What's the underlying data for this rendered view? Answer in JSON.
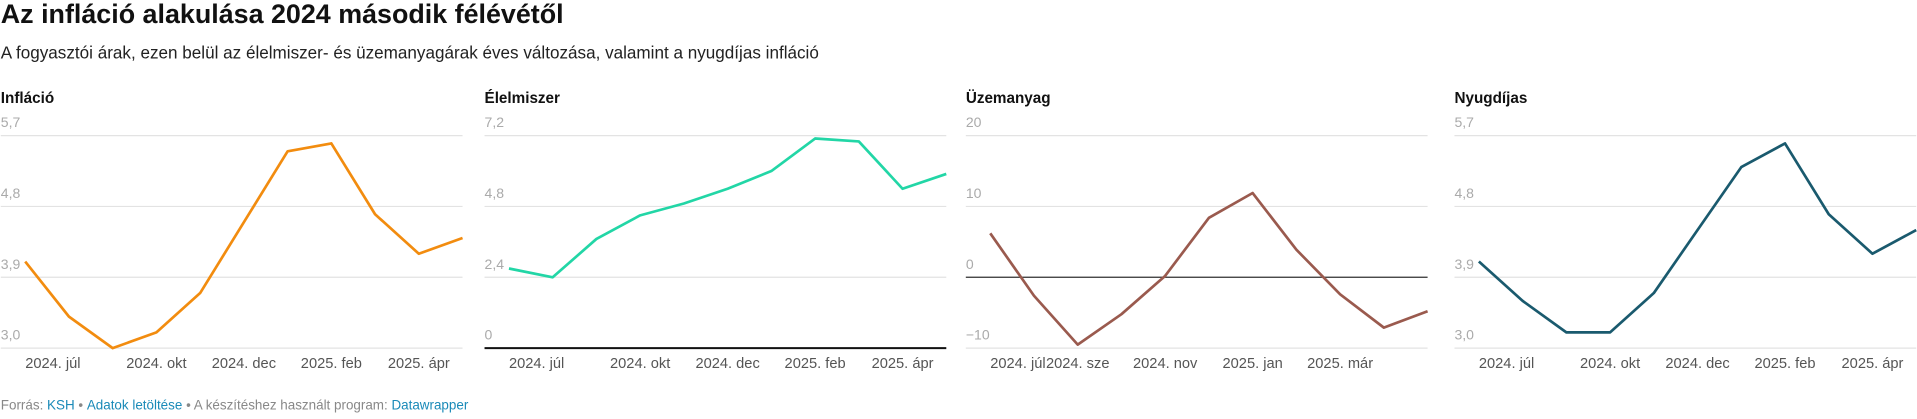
{
  "title": "Az infláció alakulása 2024 második félévétől",
  "subtitle": "A fogyasztói árak, ezen belül az élelmiszer- és üzemanyagárak éves változása, valamint a nyugdíjas infláció",
  "footer": {
    "source_label": "Forrás:",
    "source": "KSH",
    "download": "Adatok letöltése",
    "tool_label": "• A készítéshez használt program:",
    "tool": "Datawrapper"
  },
  "chart_data": [
    {
      "type": "line",
      "title": "Infláció",
      "color": "#f28c0f",
      "categories": [
        "2024. júl",
        null,
        null,
        "2024. okt",
        null,
        "2024. dec",
        null,
        "2025. feb",
        null,
        "2025. ápr",
        null
      ],
      "values": [
        4.1,
        3.4,
        3.0,
        3.2,
        3.7,
        4.6,
        5.5,
        5.6,
        4.7,
        4.2,
        4.4
      ],
      "ylim": [
        3.0,
        5.7
      ],
      "yticks": [
        {
          "value": 3.0,
          "label": "3,0"
        },
        {
          "value": 3.9,
          "label": "3,9"
        },
        {
          "value": 4.8,
          "label": "4,8"
        },
        {
          "value": 5.7,
          "label": "5,7"
        }
      ],
      "grid": true
    },
    {
      "type": "line",
      "title": "Élelmiszer",
      "color": "#22d6a6",
      "categories": [
        "2024. júl",
        null,
        null,
        "2024. okt",
        null,
        "2024. dec",
        null,
        "2025. feb",
        null,
        "2025. ápr",
        null
      ],
      "values": [
        2.7,
        2.4,
        3.7,
        4.5,
        4.9,
        5.4,
        6.0,
        7.1,
        7.0,
        5.4,
        5.9
      ],
      "ylim": [
        0,
        7.2
      ],
      "yticks": [
        0,
        {
          "value": 2.4,
          "label": "2,4"
        },
        {
          "value": 4.8,
          "label": "4,8"
        },
        {
          "value": 7.2,
          "label": "7,2"
        }
      ],
      "grid": true
    },
    {
      "type": "line",
      "title": "Üzemanyag",
      "color": "#9a5a4e",
      "categories": [
        "2024. júl",
        null,
        "2024. sze",
        null,
        "2024. nov",
        null,
        "2025. jan",
        null,
        "2025. már",
        null,
        null
      ],
      "values": [
        6.2,
        -2.6,
        -9.5,
        -5.2,
        0.2,
        8.4,
        11.9,
        3.9,
        -2.4,
        -7.1,
        -4.8
      ],
      "ylim": [
        -10,
        20
      ],
      "yticks": [
        {
          "value": -10,
          "label": "−10"
        },
        0,
        10,
        20
      ],
      "grid": true
    },
    {
      "type": "line",
      "title": "Nyugdíjas",
      "color": "#1a5a6e",
      "categories": [
        "2024. júl",
        null,
        null,
        "2024. okt",
        null,
        "2024. dec",
        null,
        "2025. feb",
        null,
        "2025. ápr",
        null
      ],
      "values": [
        4.1,
        3.6,
        3.2,
        3.2,
        3.7,
        4.5,
        5.3,
        5.6,
        4.7,
        4.2,
        4.5
      ],
      "ylim": [
        3.0,
        5.7
      ],
      "yticks": [
        {
          "value": 3.0,
          "label": "3,0"
        },
        {
          "value": 3.9,
          "label": "3,9"
        },
        {
          "value": 4.8,
          "label": "4,8"
        },
        {
          "value": 5.7,
          "label": "5,7"
        }
      ],
      "grid": true
    }
  ]
}
